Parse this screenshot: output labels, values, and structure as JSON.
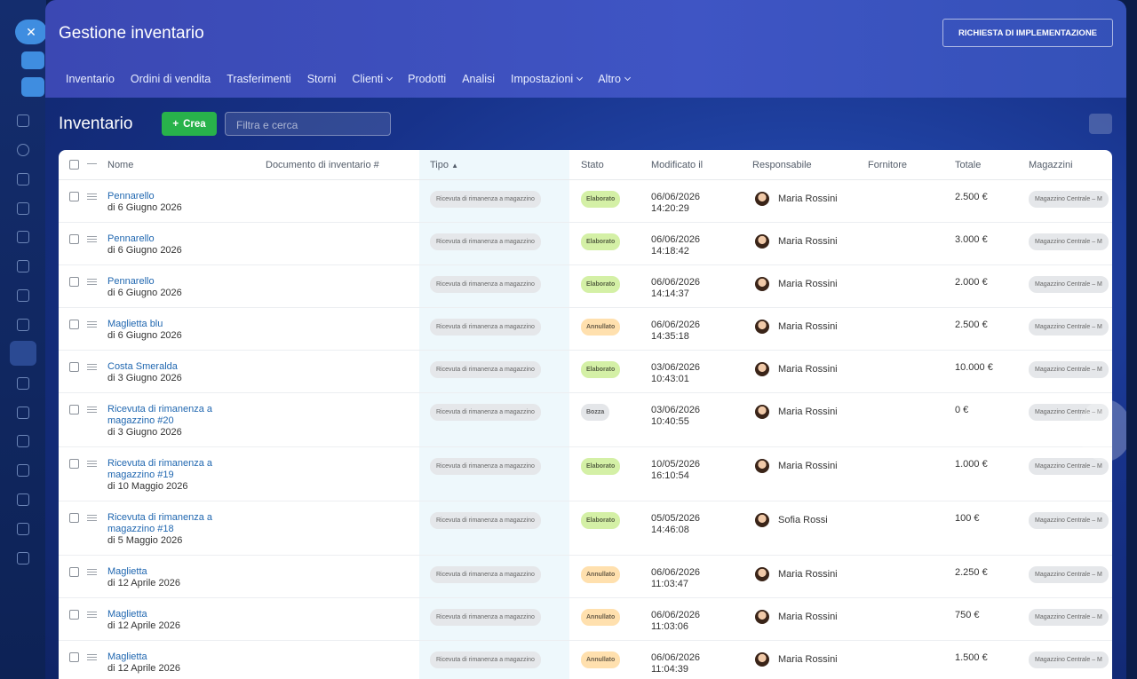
{
  "header": {
    "title": "Gestione inventario",
    "action": "RICHIESTA DI IMPLEMENTAZIONE"
  },
  "nav": [
    {
      "label": "Inventario",
      "dropdown": false
    },
    {
      "label": "Ordini di vendita",
      "dropdown": false
    },
    {
      "label": "Trasferimenti",
      "dropdown": false
    },
    {
      "label": "Storni",
      "dropdown": false
    },
    {
      "label": "Clienti",
      "dropdown": true
    },
    {
      "label": "Prodotti",
      "dropdown": false
    },
    {
      "label": "Analisi",
      "dropdown": false
    },
    {
      "label": "Impostazioni",
      "dropdown": true
    },
    {
      "label": "Altro",
      "dropdown": true
    }
  ],
  "toolbar": {
    "title": "Inventario",
    "create": "Crea",
    "search_placeholder": "Filtra e cerca"
  },
  "table": {
    "columns": [
      "Nome",
      "Documento di inventario #",
      "Tipo",
      "Stato",
      "Modificato il",
      "Responsabile",
      "Fornitore",
      "Totale",
      "Magazzini"
    ],
    "rows": [
      {
        "name": "Pennarello",
        "date": "di 6 Giugno 2026",
        "tipo": "Ricevuta di rimanenza a magazzino",
        "stato": "Elaborato",
        "stato_color": "#d4f0a6",
        "modified_date": "06/06/2026",
        "modified_time": "14:20:29",
        "responsible": "Maria Rossini",
        "totale": "2.500 €",
        "magazzini": "Magazzino Centrale – M"
      },
      {
        "name": "Pennarello",
        "date": "di 6 Giugno 2026",
        "tipo": "Ricevuta di rimanenza a magazzino",
        "stato": "Elaborato",
        "stato_color": "#d4f0a6",
        "modified_date": "06/06/2026",
        "modified_time": "14:18:42",
        "responsible": "Maria Rossini",
        "totale": "3.000 €",
        "magazzini": "Magazzino Centrale – M"
      },
      {
        "name": "Pennarello",
        "date": "di 6 Giugno 2026",
        "tipo": "Ricevuta di rimanenza a magazzino",
        "stato": "Elaborato",
        "stato_color": "#d4f0a6",
        "modified_date": "06/06/2026",
        "modified_time": "14:14:37",
        "responsible": "Maria Rossini",
        "totale": "2.000 €",
        "magazzini": "Magazzino Centrale – M"
      },
      {
        "name": "Maglietta blu",
        "date": "di 6 Giugno 2026",
        "tipo": "Ricevuta di rimanenza a magazzino",
        "stato": "Annullato",
        "stato_color": "#ffe0ae",
        "modified_date": "06/06/2026",
        "modified_time": "14:35:18",
        "responsible": "Maria Rossini",
        "totale": "2.500 €",
        "magazzini": "Magazzino Centrale – M"
      },
      {
        "name": "Costa Smeralda",
        "date": "di 3 Giugno 2026",
        "tipo": "Ricevuta di rimanenza a magazzino",
        "stato": "Elaborato",
        "stato_color": "#d4f0a6",
        "modified_date": "03/06/2026",
        "modified_time": "10:43:01",
        "responsible": "Maria Rossini",
        "totale": "10.000 €",
        "magazzini": "Magazzino Centrale – M"
      },
      {
        "name": "Ricevuta di rimanenza a magazzino #20",
        "date": "di 3 Giugno 2026",
        "tipo": "Ricevuta di rimanenza a magazzino",
        "stato": "Bozza",
        "stato_color": "#e4e6e9",
        "modified_date": "03/06/2026",
        "modified_time": "10:40:55",
        "responsible": "Maria Rossini",
        "totale": "0 €",
        "magazzini": "Magazzino Centrale – M"
      },
      {
        "name": "Ricevuta di rimanenza a magazzino #19",
        "date": "di 10 Maggio 2026",
        "tipo": "Ricevuta di rimanenza a magazzino",
        "stato": "Elaborato",
        "stato_color": "#d4f0a6",
        "modified_date": "10/05/2026",
        "modified_time": "16:10:54",
        "responsible": "Maria Rossini",
        "totale": "1.000 €",
        "magazzini": "Magazzino Centrale – M"
      },
      {
        "name": "Ricevuta di rimanenza a magazzino #18",
        "date": "di 5 Maggio 2026",
        "tipo": "Ricevuta di rimanenza a magazzino",
        "stato": "Elaborato",
        "stato_color": "#d4f0a6",
        "modified_date": "05/05/2026",
        "modified_time": "14:46:08",
        "responsible": "Sofia Rossi",
        "totale": "100 €",
        "magazzini": "Magazzino Centrale – M"
      },
      {
        "name": "Maglietta",
        "date": "di 12 Aprile 2026",
        "tipo": "Ricevuta di rimanenza a magazzino",
        "stato": "Annullato",
        "stato_color": "#ffe0ae",
        "modified_date": "06/06/2026",
        "modified_time": "11:03:47",
        "responsible": "Maria Rossini",
        "totale": "2.250 €",
        "magazzini": "Magazzino Centrale – M"
      },
      {
        "name": "Maglietta",
        "date": "di 12 Aprile 2026",
        "tipo": "Ricevuta di rimanenza a magazzino",
        "stato": "Annullato",
        "stato_color": "#ffe0ae",
        "modified_date": "06/06/2026",
        "modified_time": "11:03:06",
        "responsible": "Maria Rossini",
        "totale": "750 €",
        "magazzini": "Magazzino Centrale – M"
      },
      {
        "name": "Maglietta",
        "date": "di 12 Aprile 2026",
        "tipo": "Ricevuta di rimanenza a magazzino",
        "stato": "Annullato",
        "stato_color": "#ffe0ae",
        "modified_date": "06/06/2026",
        "modified_time": "11:04:39",
        "responsible": "Maria Rossini",
        "totale": "1.500 €",
        "magazzini": "Magazzino Centrale – M"
      }
    ]
  }
}
